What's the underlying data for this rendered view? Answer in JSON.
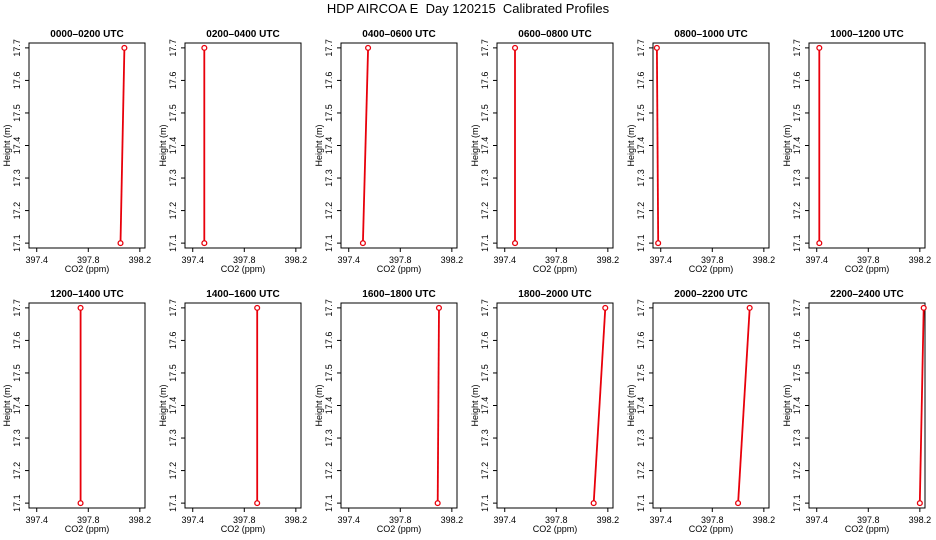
{
  "title": "HDP AIRCOA E  Day 120215  Calibrated Profiles",
  "colors": {
    "series": "#e8000b",
    "axis": "#000000"
  },
  "chart_data": [
    {
      "type": "line",
      "title": "0000–0200 UTC",
      "xlabel": "CO2 (ppm)",
      "ylabel": "Height (m)",
      "xlim": [
        397.34,
        398.24
      ],
      "ylim": [
        17.085,
        17.715
      ],
      "x_ticks": [
        "397.4",
        "397.8",
        "398.2"
      ],
      "y_ticks": [
        "17.1",
        "17.2",
        "17.3",
        "17.4",
        "17.5",
        "17.6",
        "17.7"
      ],
      "series": [
        {
          "x": [
            398.05,
            398.08
          ],
          "y": [
            17.1,
            17.7
          ]
        }
      ]
    },
    {
      "type": "line",
      "title": "0200–0400 UTC",
      "xlabel": "CO2 (ppm)",
      "ylabel": "Height (m)",
      "xlim": [
        397.34,
        398.24
      ],
      "ylim": [
        17.085,
        17.715
      ],
      "x_ticks": [
        "397.4",
        "397.8",
        "398.2"
      ],
      "y_ticks": [
        "17.1",
        "17.2",
        "17.3",
        "17.4",
        "17.5",
        "17.6",
        "17.7"
      ],
      "series": [
        {
          "x": [
            397.49,
            397.49
          ],
          "y": [
            17.1,
            17.7
          ]
        }
      ]
    },
    {
      "type": "line",
      "title": "0400–0600 UTC",
      "xlabel": "CO2 (ppm)",
      "ylabel": "Height (m)",
      "xlim": [
        397.34,
        398.24
      ],
      "ylim": [
        17.085,
        17.715
      ],
      "x_ticks": [
        "397.4",
        "397.8",
        "398.2"
      ],
      "y_ticks": [
        "17.1",
        "17.2",
        "17.3",
        "17.4",
        "17.5",
        "17.6",
        "17.7"
      ],
      "series": [
        {
          "x": [
            397.51,
            397.55
          ],
          "y": [
            17.1,
            17.7
          ]
        }
      ]
    },
    {
      "type": "line",
      "title": "0600–0800 UTC",
      "xlabel": "CO2 (ppm)",
      "ylabel": "Height (m)",
      "xlim": [
        397.34,
        398.24
      ],
      "ylim": [
        17.085,
        17.715
      ],
      "x_ticks": [
        "397.4",
        "397.8",
        "398.2"
      ],
      "y_ticks": [
        "17.1",
        "17.2",
        "17.3",
        "17.4",
        "17.5",
        "17.6",
        "17.7"
      ],
      "series": [
        {
          "x": [
            397.48,
            397.48
          ],
          "y": [
            17.1,
            17.7
          ]
        }
      ]
    },
    {
      "type": "line",
      "title": "0800–1000 UTC",
      "xlabel": "CO2 (ppm)",
      "ylabel": "Height (m)",
      "xlim": [
        397.34,
        398.24
      ],
      "ylim": [
        17.085,
        17.715
      ],
      "x_ticks": [
        "397.4",
        "397.8",
        "398.2"
      ],
      "y_ticks": [
        "17.1",
        "17.2",
        "17.3",
        "17.4",
        "17.5",
        "17.6",
        "17.7"
      ],
      "series": [
        {
          "x": [
            397.38,
            397.37
          ],
          "y": [
            17.1,
            17.7
          ]
        }
      ]
    },
    {
      "type": "line",
      "title": "1000–1200 UTC",
      "xlabel": "CO2 (ppm)",
      "ylabel": "Height (m)",
      "xlim": [
        397.34,
        398.24
      ],
      "ylim": [
        17.085,
        17.715
      ],
      "x_ticks": [
        "397.4",
        "397.8",
        "398.2"
      ],
      "y_ticks": [
        "17.1",
        "17.2",
        "17.3",
        "17.4",
        "17.5",
        "17.6",
        "17.7"
      ],
      "series": [
        {
          "x": [
            397.42,
            397.42
          ],
          "y": [
            17.1,
            17.7
          ]
        }
      ]
    },
    {
      "type": "line",
      "title": "1200–1400 UTC",
      "xlabel": "CO2 (ppm)",
      "ylabel": "Height (m)",
      "xlim": [
        397.34,
        398.24
      ],
      "ylim": [
        17.085,
        17.715
      ],
      "x_ticks": [
        "397.4",
        "397.8",
        "398.2"
      ],
      "y_ticks": [
        "17.1",
        "17.2",
        "17.3",
        "17.4",
        "17.5",
        "17.6",
        "17.7"
      ],
      "series": [
        {
          "x": [
            397.74,
            397.74
          ],
          "y": [
            17.1,
            17.7
          ]
        }
      ]
    },
    {
      "type": "line",
      "title": "1400–1600 UTC",
      "xlabel": "CO2 (ppm)",
      "ylabel": "Height (m)",
      "xlim": [
        397.34,
        398.24
      ],
      "ylim": [
        17.085,
        17.715
      ],
      "x_ticks": [
        "397.4",
        "397.8",
        "398.2"
      ],
      "y_ticks": [
        "17.1",
        "17.2",
        "17.3",
        "17.4",
        "17.5",
        "17.6",
        "17.7"
      ],
      "series": [
        {
          "x": [
            397.9,
            397.9
          ],
          "y": [
            17.1,
            17.7
          ]
        }
      ]
    },
    {
      "type": "line",
      "title": "1600–1800 UTC",
      "xlabel": "CO2 (ppm)",
      "ylabel": "Height (m)",
      "xlim": [
        397.34,
        398.24
      ],
      "ylim": [
        17.085,
        17.715
      ],
      "x_ticks": [
        "397.4",
        "397.8",
        "398.2"
      ],
      "y_ticks": [
        "17.1",
        "17.2",
        "17.3",
        "17.4",
        "17.5",
        "17.6",
        "17.7"
      ],
      "series": [
        {
          "x": [
            398.09,
            398.1
          ],
          "y": [
            17.1,
            17.7
          ]
        }
      ]
    },
    {
      "type": "line",
      "title": "1800–2000 UTC",
      "xlabel": "CO2 (ppm)",
      "ylabel": "Height (m)",
      "xlim": [
        397.34,
        398.24
      ],
      "ylim": [
        17.085,
        17.715
      ],
      "x_ticks": [
        "397.4",
        "397.8",
        "398.2"
      ],
      "y_ticks": [
        "17.1",
        "17.2",
        "17.3",
        "17.4",
        "17.5",
        "17.6",
        "17.7"
      ],
      "series": [
        {
          "x": [
            398.09,
            398.18
          ],
          "y": [
            17.1,
            17.7
          ]
        }
      ]
    },
    {
      "type": "line",
      "title": "2000–2200 UTC",
      "xlabel": "CO2 (ppm)",
      "ylabel": "Height (m)",
      "xlim": [
        397.34,
        398.24
      ],
      "ylim": [
        17.085,
        17.715
      ],
      "x_ticks": [
        "397.4",
        "397.8",
        "398.2"
      ],
      "y_ticks": [
        "17.1",
        "17.2",
        "17.3",
        "17.4",
        "17.5",
        "17.6",
        "17.7"
      ],
      "series": [
        {
          "x": [
            398.0,
            398.09
          ],
          "y": [
            17.1,
            17.7
          ]
        }
      ]
    },
    {
      "type": "line",
      "title": "2200–2400 UTC",
      "xlabel": "CO2 (ppm)",
      "ylabel": "Height (m)",
      "xlim": [
        397.34,
        398.24
      ],
      "ylim": [
        17.085,
        17.715
      ],
      "x_ticks": [
        "397.4",
        "397.8",
        "398.2"
      ],
      "y_ticks": [
        "17.1",
        "17.2",
        "17.3",
        "17.4",
        "17.5",
        "17.6",
        "17.7"
      ],
      "series": [
        {
          "x": [
            398.2,
            398.23
          ],
          "y": [
            17.1,
            17.7
          ]
        }
      ]
    }
  ]
}
